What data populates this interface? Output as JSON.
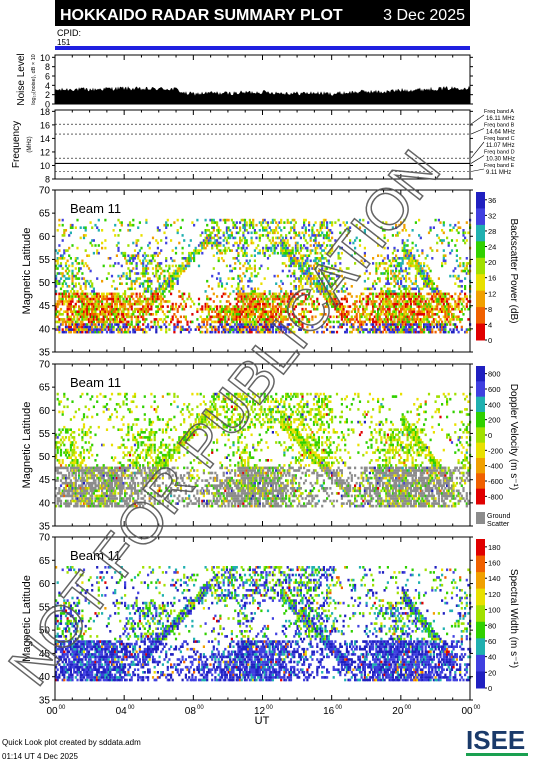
{
  "header": {
    "title": "HOKKAIDO RADAR SUMMARY PLOT",
    "date": "3 Dec 2025",
    "cpid_label": "CPID:",
    "cpid_value": "151"
  },
  "footer": {
    "credit": "Quick Look plot created by sddata.adm",
    "timestamp": "01:14 UT  4 Dec 2025",
    "logo_text": "ISEE"
  },
  "watermark": "NOT FOR PUBLICATION",
  "colors": {
    "cpid_bar": "#2020e0",
    "ground_scatter": "#8c8c8c",
    "noise_fill": "#000000"
  },
  "chart_data": [
    {
      "type": "area",
      "name": "noise-panel",
      "ylabel": "Noise Level",
      "ylabel_sub": "log₁₀(noise), dB × 10",
      "yticks": [
        "0",
        "2",
        "4",
        "6",
        "8",
        "10"
      ],
      "ylim": [
        0,
        10.5
      ],
      "x": [
        0,
        1,
        2,
        3,
        4,
        5,
        6,
        7,
        7.5,
        8,
        9,
        10,
        11,
        12,
        13,
        14,
        15,
        16,
        17,
        18,
        19,
        20,
        21,
        22,
        23,
        24
      ],
      "values": [
        3,
        3.2,
        3.1,
        3.3,
        3.4,
        3.2,
        3.3,
        3.2,
        2.3,
        2.2,
        2.4,
        2.3,
        2.5,
        2.6,
        2.4,
        2.3,
        2.4,
        2.2,
        2.5,
        2.7,
        2.6,
        3.0,
        3.1,
        3.3,
        3.4,
        3.5
      ]
    },
    {
      "type": "line",
      "name": "frequency-panel",
      "ylabel": "Frequency",
      "ylabel_sub": "(MHz)",
      "yticks": [
        "8",
        "10",
        "12",
        "14",
        "16",
        "18"
      ],
      "ylim": [
        8,
        18.2
      ],
      "bands": [
        {
          "label": "Freq band A",
          "value": 16.11,
          "text": "16.11 MHz"
        },
        {
          "label": "Freq band B",
          "value": 14.64,
          "text": "14.64 MHz"
        },
        {
          "label": "Freq band C",
          "value": 11.07,
          "text": "11.07 MHz"
        },
        {
          "label": "Freq band D",
          "value": 10.3,
          "text": "10.30 MHz"
        },
        {
          "label": "Freq band E",
          "value": 9.11,
          "text": "9.11 MHz"
        }
      ],
      "series": [
        {
          "name": "operating frequency",
          "value": 10.3
        }
      ]
    },
    {
      "type": "heatmap",
      "name": "power-panel",
      "beam_label": "Beam 11",
      "ylabel": "Magnetic Latitude",
      "yticks": [
        "35",
        "40",
        "45",
        "50",
        "55",
        "60",
        "65",
        "70"
      ],
      "ylim": [
        35,
        70
      ],
      "colorbar_label": "Backscatter Power (dB)",
      "colorbar_ticks": [
        "0",
        "4",
        "8",
        "12",
        "16",
        "20",
        "24",
        "28",
        "32",
        "36"
      ],
      "colorbar_range": [
        0,
        38
      ],
      "colorbar_colors": [
        "#e00000",
        "#f06000",
        "#f0a000",
        "#e8e000",
        "#a0e000",
        "#30d000",
        "#20b0b0",
        "#4040e0",
        "#2020c0"
      ],
      "colorbar_reversed": false
    },
    {
      "type": "heatmap",
      "name": "velocity-panel",
      "beam_label": "Beam 11",
      "ylabel": "Magnetic Latitude",
      "yticks": [
        "35",
        "40",
        "45",
        "50",
        "55",
        "60",
        "65",
        "70"
      ],
      "ylim": [
        35,
        70
      ],
      "colorbar_label": "Doppler Velocity (m s⁻¹)",
      "colorbar_ticks": [
        "-800",
        "-600",
        "-400",
        "-200",
        "0",
        "200",
        "400",
        "600",
        "800"
      ],
      "colorbar_range": [
        -900,
        900
      ],
      "colorbar_colors": [
        "#e00000",
        "#f06000",
        "#f0a000",
        "#e8e000",
        "#a0e000",
        "#30d000",
        "#20b0b0",
        "#4040e0",
        "#2020c0"
      ],
      "ground_scatter_label": [
        "Ground",
        "Scatter"
      ]
    },
    {
      "type": "heatmap",
      "name": "width-panel",
      "beam_label": "Beam 11",
      "ylabel": "Magnetic Latitude",
      "yticks": [
        "35",
        "40",
        "45",
        "50",
        "55",
        "60",
        "65",
        "70"
      ],
      "ylim": [
        35,
        70
      ],
      "colorbar_label": "Spectral Width (m s⁻¹)",
      "colorbar_ticks": [
        "0",
        "20",
        "40",
        "60",
        "80",
        "100",
        "120",
        "140",
        "160",
        "180"
      ],
      "colorbar_range": [
        0,
        190
      ],
      "colorbar_colors": [
        "#2020c0",
        "#4040e0",
        "#20b0b0",
        "#30d000",
        "#a0e000",
        "#e8e000",
        "#f0a000",
        "#f06000",
        "#e00000"
      ]
    }
  ],
  "x_axis": {
    "label": "UT",
    "ticks": [
      {
        "h": 0,
        "label": "00",
        "sup": "00"
      },
      {
        "h": 4,
        "label": "04",
        "sup": "00"
      },
      {
        "h": 8,
        "label": "08",
        "sup": "00"
      },
      {
        "h": 12,
        "label": "12",
        "sup": "00"
      },
      {
        "h": 16,
        "label": "16",
        "sup": "00"
      },
      {
        "h": 20,
        "label": "20",
        "sup": "00"
      },
      {
        "h": 24,
        "label": "00",
        "sup": "00"
      }
    ],
    "xlim": [
      0,
      24
    ]
  }
}
